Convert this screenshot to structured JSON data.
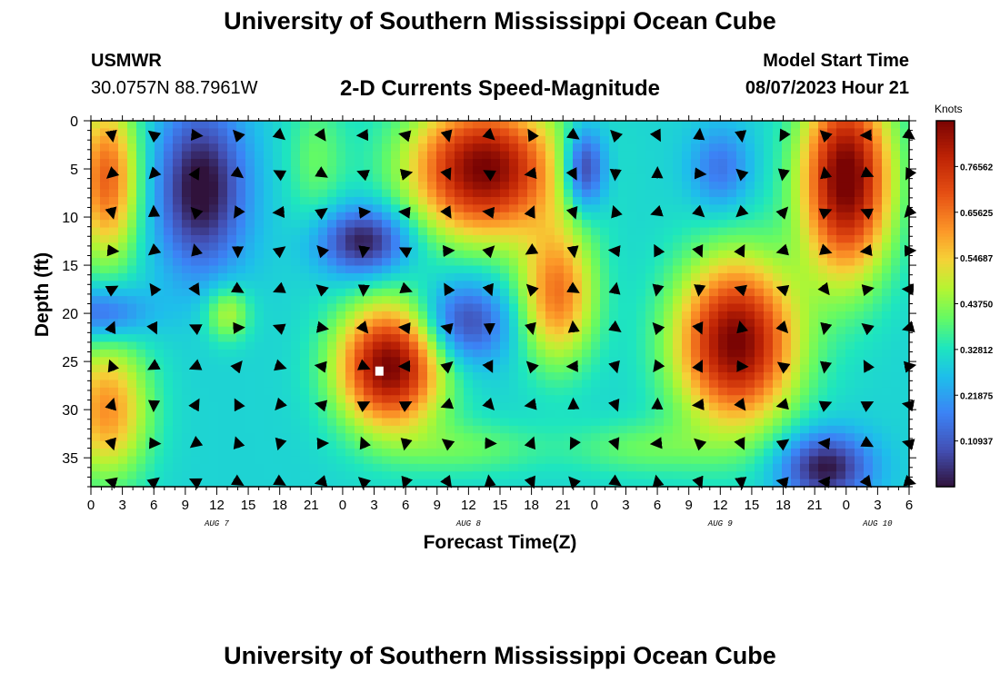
{
  "header": {
    "title": "University of Southern Mississippi Ocean Cube",
    "station": "USMWR",
    "coordinates": "30.0757N  88.7961W",
    "subtitle": "2-D Currents Speed-Magnitude",
    "model_start_label": "Model Start Time",
    "model_start_value": "08/07/2023 Hour 21"
  },
  "footer": {
    "title": "University of Southern Mississippi Ocean Cube"
  },
  "chart_data": {
    "type": "heatmap",
    "title": "2-D Currents Speed-Magnitude",
    "xlabel": "Forecast Time(Z)",
    "ylabel": "Depth (ft)",
    "x_tick_labels": [
      "0",
      "3",
      "6",
      "9",
      "12",
      "15",
      "18",
      "21",
      "0",
      "3",
      "6",
      "9",
      "12",
      "15",
      "18",
      "21",
      "0",
      "3",
      "6",
      "9",
      "12",
      "15",
      "18",
      "21",
      "0",
      "3",
      "6"
    ],
    "x_range_hours": [
      0,
      78
    ],
    "day_labels": [
      {
        "label": "AUG 7",
        "hour": 12
      },
      {
        "label": "AUG 8",
        "hour": 36
      },
      {
        "label": "AUG 9",
        "hour": 60
      },
      {
        "label": "AUG 10",
        "hour": 75
      }
    ],
    "y_ticks": [
      0,
      5,
      10,
      15,
      20,
      25,
      30,
      35
    ],
    "y_range": [
      0,
      38
    ],
    "colorbar": {
      "unit": "Knots",
      "range": [
        0,
        0.875
      ],
      "tick_values": [
        0.10937,
        0.21875,
        0.32812,
        0.4375,
        0.54687,
        0.65625,
        0.76562
      ],
      "tick_labels": [
        "0.10937",
        "0.21875",
        "0.32812",
        "0.43750",
        "0.54687",
        "0.65625",
        "0.76562"
      ]
    },
    "marker": {
      "hour": 27.5,
      "depth": 26
    },
    "blobs": [
      {
        "hour": 1.5,
        "depth": 6,
        "sh": 2.2,
        "sd": 6,
        "amp": 0.38
      },
      {
        "hour": 1.5,
        "depth": 30,
        "sh": 2.8,
        "sd": 5,
        "amp": 0.32
      },
      {
        "hour": 10.5,
        "depth": 7,
        "sh": 3,
        "sd": 6,
        "amp": -0.32
      },
      {
        "hour": 13,
        "depth": 20,
        "sh": 1.5,
        "sd": 2,
        "amp": 0.18
      },
      {
        "hour": 1,
        "depth": 20,
        "sh": 3,
        "sd": 2,
        "amp": -0.2
      },
      {
        "hour": 21.5,
        "depth": 4,
        "sh": 2,
        "sd": 5,
        "amp": 0.1
      },
      {
        "hour": 26,
        "depth": 12.5,
        "sh": 3,
        "sd": 2.5,
        "amp": -0.3
      },
      {
        "hour": 28.5,
        "depth": 25.5,
        "sh": 3.5,
        "sd": 4.5,
        "amp": 0.58
      },
      {
        "hour": 37.5,
        "depth": 5,
        "sh": 5,
        "sd": 5,
        "amp": 0.58
      },
      {
        "hour": 35.5,
        "depth": 21,
        "sh": 3,
        "sd": 3,
        "amp": -0.24
      },
      {
        "hour": 44.5,
        "depth": 18,
        "sh": 2.5,
        "sd": 5,
        "amp": 0.35
      },
      {
        "hour": 47,
        "depth": 5,
        "sh": 1.4,
        "sd": 3,
        "amp": -0.3
      },
      {
        "hour": 61.5,
        "depth": 23,
        "sh": 4,
        "sd": 6,
        "amp": 0.58
      },
      {
        "hour": 60,
        "depth": 5,
        "sh": 2,
        "sd": 3,
        "amp": -0.15
      },
      {
        "hour": 72,
        "depth": 6,
        "sh": 3,
        "sd": 7,
        "amp": 0.6
      },
      {
        "hour": 70,
        "depth": 36,
        "sh": 3,
        "sd": 2.5,
        "amp": -0.3
      },
      {
        "hour": 52.5,
        "depth": 34,
        "sh": 5,
        "sd": 2,
        "amp": 0.1
      },
      {
        "hour": 36,
        "depth": 34,
        "sh": 5,
        "sd": 2,
        "amp": 0.1
      }
    ],
    "vector_hours": [
      0,
      4,
      8,
      12,
      16,
      20,
      24,
      28,
      32,
      36,
      40,
      44,
      48,
      52,
      56,
      60,
      64,
      68,
      72,
      76
    ],
    "vector_depths": [
      0,
      4,
      8,
      12,
      16,
      20,
      24,
      28,
      32,
      36
    ]
  }
}
